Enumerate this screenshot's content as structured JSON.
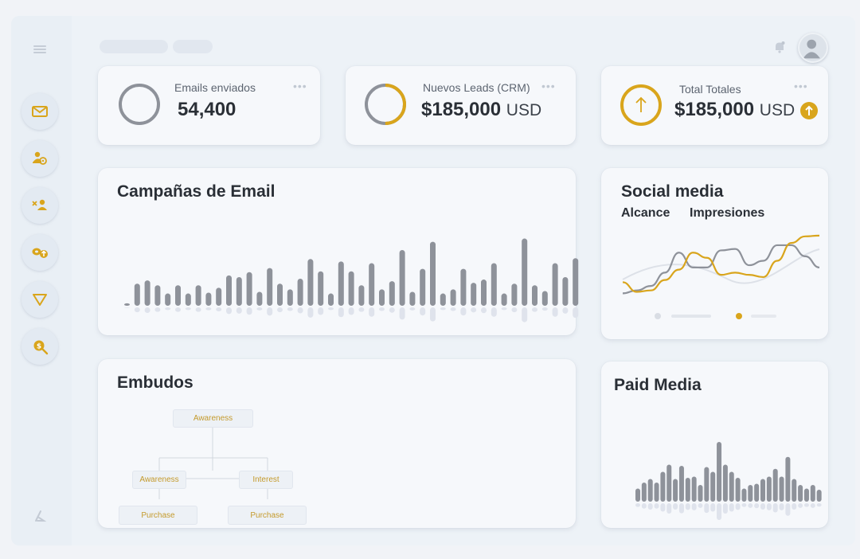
{
  "sidebar": {
    "items": [
      {
        "icon": "mail-icon"
      },
      {
        "icon": "contacts-settings-icon"
      },
      {
        "icon": "remove-user-icon"
      },
      {
        "icon": "coins-upload-icon"
      },
      {
        "icon": "funnel-icon"
      },
      {
        "icon": "search-money-icon"
      }
    ],
    "bottom_icon": "theme-toggle-icon"
  },
  "header": {
    "notification_icon": "bell-icon",
    "avatar_icon": "user-avatar-icon"
  },
  "kpis": {
    "emails": {
      "label": "Emails enviados",
      "value": "54,400"
    },
    "leads": {
      "label": "Nuevos Leads (CRM)",
      "value": "$185,000",
      "unit": "USD",
      "progress": 0.5
    },
    "total": {
      "label": "Total Totales",
      "value": "$185,000",
      "unit": "USD",
      "trend_icon": "arrow-up-icon"
    }
  },
  "colors": {
    "accent": "#d9a51c",
    "bar": "#8e929a",
    "line_gray": "#8e929a"
  },
  "email_campaigns": {
    "title": "Campañas de Email"
  },
  "social_media": {
    "title": "Social media",
    "legend": [
      "Alcance",
      "Impresiones"
    ]
  },
  "funnels": {
    "title": "Embudos",
    "nodes": {
      "top": "Awareness",
      "left": "Awareness",
      "right": "Interest",
      "bottom_left": "Purchase",
      "bottom_right": "Purchase"
    }
  },
  "paid_media": {
    "title": "Paid Media"
  },
  "chart_data": [
    {
      "type": "bar",
      "title": "Campañas de Email",
      "values": [
        3,
        27,
        31,
        25,
        15,
        25,
        15,
        25,
        16,
        22,
        37,
        35,
        41,
        17,
        46,
        27,
        20,
        33,
        57,
        42,
        15,
        54,
        42,
        25,
        52,
        20,
        30,
        68,
        17,
        45,
        78,
        15,
        20,
        45,
        28,
        32,
        52,
        15,
        27,
        82,
        25,
        18,
        52,
        35,
        58
      ]
    },
    {
      "type": "line",
      "title": "Social media",
      "series": [
        {
          "name": "Alcance",
          "values": [
            35,
            22,
            24,
            38,
            52,
            75,
            68,
            45,
            48,
            45,
            42,
            64,
            88,
            97,
            98
          ]
        },
        {
          "name": "Impresiones",
          "values": [
            20,
            24,
            30,
            48,
            75,
            55,
            55,
            78,
            80,
            58,
            64,
            85,
            85,
            70,
            55
          ]
        }
      ]
    },
    {
      "type": "bar",
      "title": "Paid Media",
      "values": [
        22,
        32,
        38,
        32,
        50,
        62,
        38,
        60,
        40,
        42,
        28,
        58,
        50,
        100,
        62,
        50,
        40,
        22,
        28,
        30,
        38,
        42,
        55,
        42,
        75,
        38,
        28,
        22,
        28,
        20
      ]
    }
  ]
}
